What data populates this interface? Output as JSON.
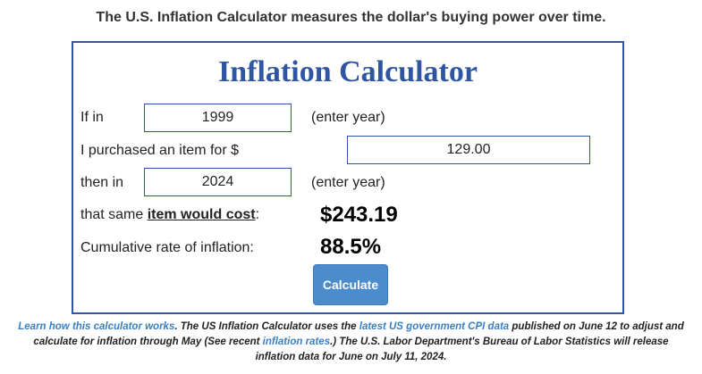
{
  "header": {
    "tagline": "The U.S. Inflation Calculator measures the dollar's buying power over time."
  },
  "calculator": {
    "title": "Inflation Calculator",
    "if_in_label": "If in",
    "start_year_value": "1999",
    "enter_year_hint_1": "(enter year)",
    "purchase_label": "I purchased an item for $",
    "amount_value": "129.00",
    "then_in_label": "then in",
    "end_year_value": "2024",
    "enter_year_hint_2": "(enter year)",
    "cost_label_prefix": "that same ",
    "cost_label_link": "item would cost",
    "cost_label_suffix": ":",
    "cost_result": "$243.19",
    "cumulative_label": "Cumulative rate of inflation:",
    "cumulative_result": "88.5%",
    "calculate_button": "Calculate"
  },
  "footer": {
    "link_how": "Learn how this calculator works",
    "text_1": ". The US Inflation Calculator uses the ",
    "link_cpi": "latest US government CPI data",
    "text_2": " published on June 12 to adjust and calculate for inflation through May (See recent ",
    "link_rates": "inflation rates",
    "text_3": ".) The U.S. Labor Department's Bureau of Labor Statistics will release inflation data for June on July 11, 2024."
  },
  "colors": {
    "accent_blue": "#2f56a3",
    "button_blue": "#4a8ccc",
    "link_blue": "#3a7fc2"
  }
}
